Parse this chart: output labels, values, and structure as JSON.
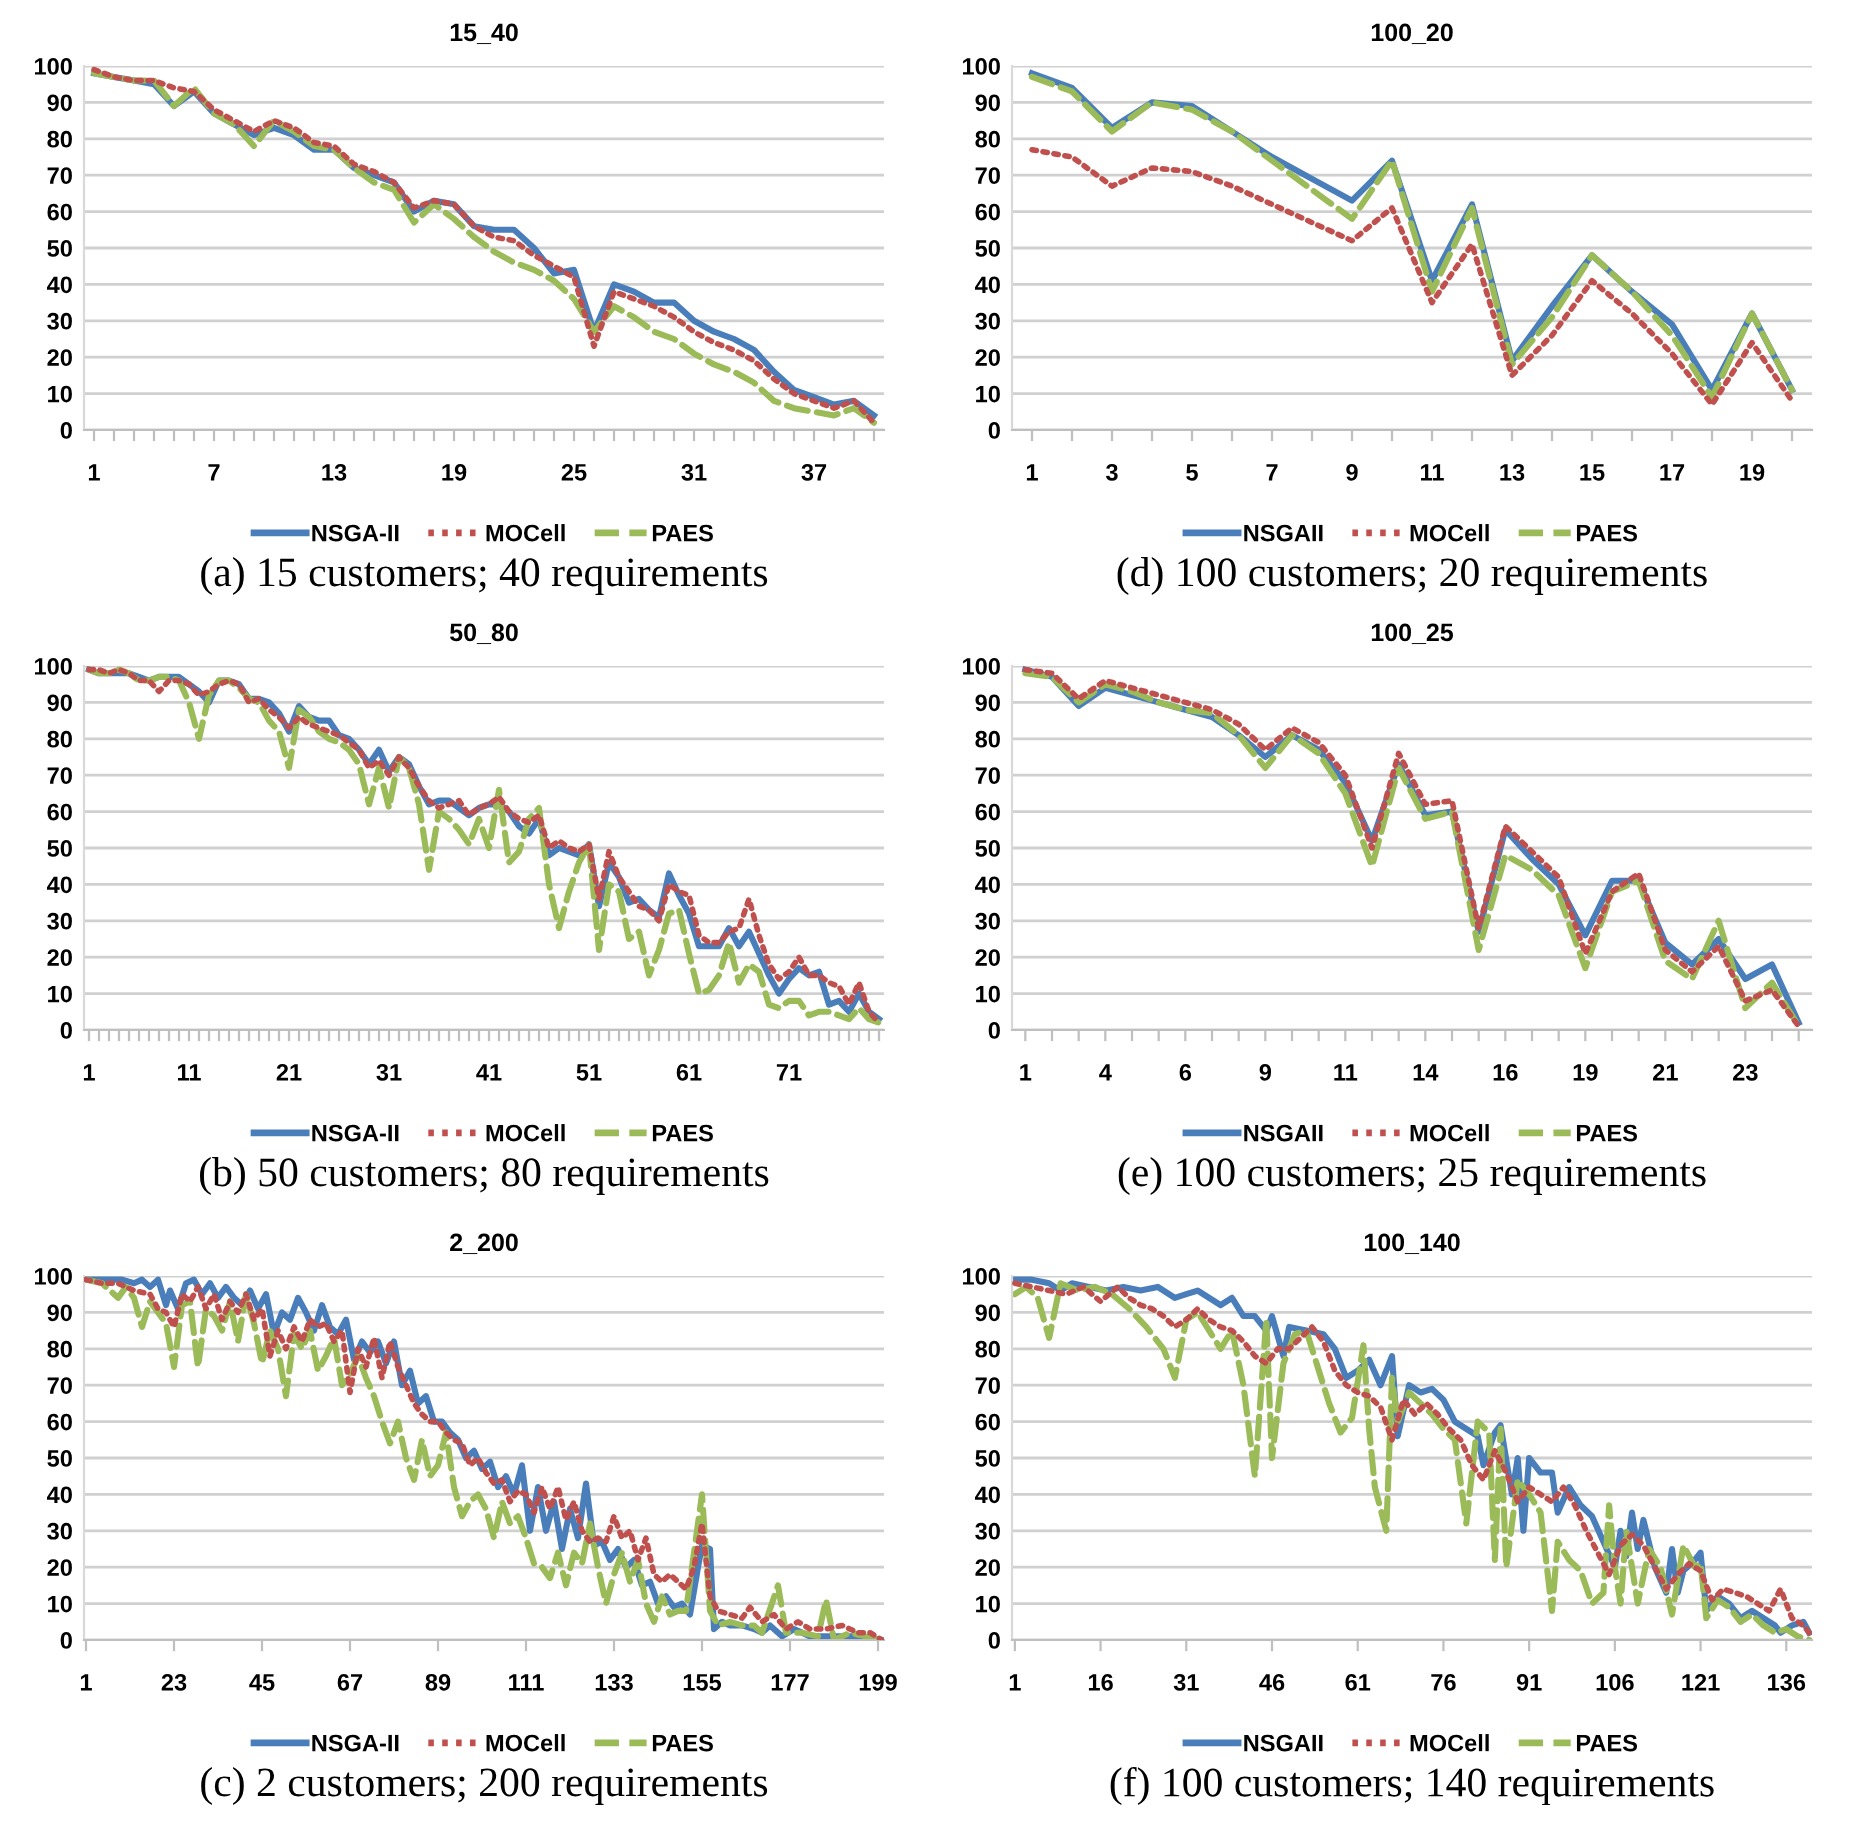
{
  "chart_data": [
    {
      "type": "line",
      "title": "15_40",
      "annotations": [
        "(a) 15 customers; 40 requirements"
      ],
      "categories": [
        "1",
        null,
        null,
        null,
        null,
        null,
        "7",
        null,
        null,
        null,
        null,
        null,
        "13",
        null,
        null,
        null,
        null,
        null,
        "19",
        null,
        null,
        null,
        null,
        null,
        "25",
        null,
        null,
        null,
        null,
        null,
        "31",
        null,
        null,
        null,
        null,
        null,
        "37",
        null,
        null,
        null
      ],
      "ylim": [
        0,
        100
      ],
      "yticks": [
        0,
        10,
        20,
        30,
        40,
        50,
        60,
        70,
        80,
        90,
        100
      ],
      "grid": "y",
      "legend": "bottom",
      "series": [
        {
          "name": "NSGA-II",
          "color": "#4a7ebb",
          "line_style": "solid",
          "values": [
            98,
            97,
            96,
            95,
            89,
            93,
            87,
            84,
            81,
            83,
            81,
            77,
            77,
            72,
            70,
            68,
            60,
            63,
            62,
            56,
            55,
            55,
            50,
            43,
            44,
            27,
            40,
            38,
            35,
            35,
            30,
            27,
            25,
            22,
            16,
            11,
            9,
            7,
            8,
            4
          ]
        },
        {
          "name": "MOCell",
          "color": "#c0504d",
          "line_style": "dotted",
          "values": [
            99,
            97,
            96,
            96,
            94,
            93,
            88,
            85,
            82,
            85,
            83,
            79,
            78,
            73,
            71,
            68,
            61,
            63,
            62,
            56,
            53,
            52,
            48,
            45,
            42,
            23,
            38,
            36,
            34,
            31,
            27,
            24,
            22,
            19,
            14,
            10,
            8,
            6,
            8,
            2
          ]
        },
        {
          "name": "PAES",
          "color": "#9bbb59",
          "line_style": "dashed",
          "values": [
            98,
            97,
            96,
            96,
            89,
            94,
            87,
            84,
            78,
            85,
            82,
            78,
            77,
            72,
            68,
            66,
            57,
            62,
            58,
            53,
            49,
            46,
            44,
            41,
            36,
            27,
            34,
            31,
            27,
            25,
            21,
            18,
            16,
            13,
            8,
            6,
            5,
            4,
            6,
            2
          ]
        }
      ]
    },
    {
      "type": "line",
      "title": "100_20",
      "annotations": [
        "(d) 100 customers; 20 requirements"
      ],
      "categories": [
        "1",
        null,
        "3",
        null,
        "5",
        null,
        "7",
        null,
        "9",
        null,
        "11",
        null,
        "13",
        null,
        "15",
        null,
        "17",
        null,
        "19",
        null
      ],
      "ylim": [
        0,
        100
      ],
      "yticks": [
        0,
        10,
        20,
        30,
        40,
        50,
        60,
        70,
        80,
        90,
        100
      ],
      "grid": "y",
      "legend": "bottom",
      "series": [
        {
          "name": "NSGAII",
          "color": "#4a7ebb",
          "line_style": "solid",
          "values": [
            98,
            94,
            83,
            90,
            89,
            82,
            75,
            69,
            63,
            74,
            41,
            62,
            19,
            34,
            48,
            38,
            29,
            11,
            32,
            11
          ]
        },
        {
          "name": "MOCell",
          "color": "#c0504d",
          "line_style": "dotted",
          "values": [
            77,
            75,
            67,
            72,
            71,
            67,
            62,
            57,
            52,
            61,
            35,
            51,
            15,
            26,
            41,
            32,
            21,
            7,
            24,
            8
          ]
        },
        {
          "name": "PAES",
          "color": "#9bbb59",
          "line_style": "dashed",
          "values": [
            97,
            93,
            82,
            90,
            88,
            82,
            74,
            66,
            58,
            74,
            38,
            61,
            18,
            31,
            48,
            38,
            26,
            9,
            32,
            11
          ]
        }
      ]
    },
    {
      "type": "line",
      "title": "50_80",
      "annotations": [
        "(b) 50 customers; 80 requirements"
      ],
      "categories": [
        "1",
        null,
        null,
        null,
        null,
        null,
        null,
        null,
        null,
        null,
        "11",
        null,
        null,
        null,
        null,
        null,
        null,
        null,
        null,
        null,
        "21",
        null,
        null,
        null,
        null,
        null,
        null,
        null,
        null,
        null,
        "31",
        null,
        null,
        null,
        null,
        null,
        null,
        null,
        null,
        null,
        "41",
        null,
        null,
        null,
        null,
        null,
        null,
        null,
        null,
        null,
        "51",
        null,
        null,
        null,
        null,
        null,
        null,
        null,
        null,
        null,
        "61",
        null,
        null,
        null,
        null,
        null,
        null,
        null,
        null,
        null,
        "71",
        null,
        null,
        null,
        null,
        null,
        null,
        null,
        null,
        null
      ],
      "ylim": [
        0,
        100
      ],
      "yticks": [
        0,
        10,
        20,
        30,
        40,
        50,
        60,
        70,
        80,
        90,
        100
      ],
      "grid": "y",
      "legend": "bottom",
      "series": [
        {
          "name": "NSGA-II",
          "color": "#4a7ebb",
          "line_style": "solid",
          "values": [
            99,
            98,
            98,
            98,
            98,
            97,
            96,
            97,
            97,
            97,
            95,
            93,
            90,
            96,
            96,
            95,
            91,
            91,
            90,
            87,
            82,
            89,
            86,
            85,
            85,
            81,
            80,
            77,
            73,
            77,
            71,
            75,
            73,
            67,
            62,
            63,
            63,
            61,
            59,
            61,
            62,
            62,
            60,
            56,
            54,
            58,
            48,
            50,
            49,
            48,
            51,
            34,
            46,
            42,
            35,
            36,
            33,
            31,
            43,
            37,
            32,
            23,
            23,
            23,
            28,
            23,
            27,
            21,
            15,
            10,
            14,
            17,
            15,
            16,
            7,
            8,
            5,
            10,
            5,
            3
          ]
        },
        {
          "name": "MOCell",
          "color": "#c0504d",
          "line_style": "dotted",
          "values": [
            99,
            99,
            98,
            99,
            98,
            96,
            96,
            93,
            96,
            96,
            95,
            92,
            93,
            95,
            96,
            95,
            90,
            91,
            88,
            86,
            83,
            86,
            84,
            83,
            82,
            81,
            79,
            77,
            72,
            74,
            70,
            75,
            72,
            67,
            63,
            61,
            62,
            63,
            59,
            61,
            62,
            64,
            60,
            58,
            57,
            59,
            50,
            52,
            50,
            49,
            51,
            36,
            49,
            42,
            38,
            34,
            33,
            30,
            40,
            38,
            37,
            26,
            24,
            24,
            27,
            28,
            36,
            26,
            18,
            14,
            16,
            20,
            15,
            15,
            13,
            12,
            7,
            13,
            5,
            2
          ]
        },
        {
          "name": "PAES",
          "color": "#9bbb59",
          "line_style": "dashed",
          "values": [
            99,
            98,
            98,
            99,
            98,
            96,
            96,
            97,
            97,
            96,
            90,
            80,
            92,
            96,
            96,
            94,
            91,
            90,
            85,
            82,
            72,
            88,
            86,
            82,
            80,
            79,
            77,
            73,
            62,
            72,
            61,
            75,
            72,
            62,
            44,
            60,
            58,
            55,
            51,
            58,
            50,
            66,
            46,
            49,
            58,
            61,
            40,
            28,
            38,
            46,
            51,
            22,
            40,
            38,
            25,
            27,
            15,
            22,
            32,
            33,
            21,
            10,
            11,
            15,
            24,
            13,
            18,
            16,
            7,
            6,
            8,
            8,
            4,
            5,
            5,
            4,
            3,
            6,
            3,
            2
          ]
        }
      ]
    },
    {
      "type": "line",
      "title": "100_25",
      "annotations": [
        "(e) 100 customers; 25 requirements"
      ],
      "categories": [
        "1",
        null,
        null,
        "4",
        null,
        null,
        "6",
        null,
        null,
        "9",
        null,
        null,
        "11",
        null,
        null,
        "14",
        null,
        null,
        "16",
        null,
        null,
        "19",
        null,
        null,
        "21",
        null,
        null,
        "23",
        null,
        null
      ],
      "ylim": [
        0,
        100
      ],
      "yticks": [
        0,
        10,
        20,
        30,
        40,
        50,
        60,
        70,
        80,
        90,
        100
      ],
      "grid": "y",
      "legend": "bottom",
      "series": [
        {
          "name": "NSGAII",
          "color": "#4a7ebb",
          "line_style": "solid",
          "values": [
            99,
            97,
            89,
            94,
            92,
            90,
            88,
            86,
            81,
            75,
            81,
            77,
            68,
            52,
            73,
            59,
            60,
            27,
            55,
            47,
            40,
            26,
            41,
            41,
            24,
            18,
            25,
            14,
            18,
            2
          ]
        },
        {
          "name": "MOCell",
          "color": "#c0504d",
          "line_style": "dotted",
          "values": [
            99,
            98,
            91,
            96,
            94,
            92,
            90,
            88,
            84,
            77,
            83,
            79,
            70,
            50,
            76,
            62,
            63,
            28,
            56,
            49,
            42,
            21,
            38,
            43,
            22,
            16,
            23,
            8,
            11,
            1
          ]
        },
        {
          "name": "PAES",
          "color": "#9bbb59",
          "line_style": "dashed",
          "values": [
            98,
            97,
            90,
            95,
            93,
            90,
            88,
            87,
            81,
            72,
            81,
            76,
            65,
            45,
            72,
            58,
            60,
            22,
            48,
            44,
            37,
            17,
            38,
            41,
            19,
            14,
            30,
            6,
            13,
            1
          ]
        }
      ]
    },
    {
      "type": "line",
      "title": "2_200",
      "annotations": [
        "(c) 2 customers; 200 requirements"
      ],
      "xlim": [
        0.5,
        200.5
      ],
      "xticks": [
        1,
        23,
        45,
        67,
        89,
        111,
        133,
        155,
        177,
        199
      ],
      "ylim": [
        0,
        100
      ],
      "yticks": [
        0,
        10,
        20,
        30,
        40,
        50,
        60,
        70,
        80,
        90,
        100
      ],
      "grid": "y",
      "legend": "bottom",
      "series": [
        {
          "name": "NSGA-II",
          "color": "#4a7ebb",
          "line_style": "solid",
          "x": [
            1,
            5,
            10,
            13,
            15,
            17,
            19,
            21,
            22,
            24,
            26,
            28,
            30,
            32,
            34,
            36,
            38,
            40,
            42,
            44,
            46,
            48,
            50,
            52,
            54,
            56,
            58,
            60,
            62,
            64,
            66,
            68,
            70,
            72,
            74,
            76,
            78,
            80,
            82,
            84,
            86,
            88,
            90,
            92,
            94,
            96,
            98,
            100,
            102,
            104,
            106,
            108,
            110,
            112,
            114,
            116,
            118,
            120,
            122,
            124,
            126,
            128,
            130,
            132,
            134,
            136,
            138,
            140,
            142,
            144,
            146,
            148,
            150,
            152,
            154,
            155,
            157,
            158,
            160,
            162,
            165,
            168,
            170,
            172,
            175,
            178,
            182,
            186,
            190,
            195,
            200
          ],
          "values": [
            99,
            99,
            99,
            98,
            99,
            97,
            99,
            92,
            96,
            91,
            98,
            99,
            95,
            98,
            94,
            97,
            94,
            92,
            96,
            91,
            95,
            84,
            90,
            88,
            94,
            90,
            85,
            92,
            86,
            84,
            88,
            77,
            82,
            79,
            82,
            76,
            82,
            70,
            74,
            65,
            67,
            60,
            60,
            57,
            55,
            50,
            52,
            47,
            49,
            42,
            45,
            40,
            48,
            30,
            42,
            30,
            38,
            25,
            36,
            28,
            43,
            26,
            27,
            22,
            25,
            20,
            22,
            15,
            16,
            10,
            12,
            9,
            10,
            7,
            20,
            26,
            25,
            3,
            5,
            4,
            4,
            3,
            2,
            4,
            1,
            3,
            1,
            1,
            1,
            1,
            0
          ]
        },
        {
          "name": "MOCell",
          "color": "#c0504d",
          "line_style": "dotted",
          "x": [
            1,
            5,
            9,
            13,
            17,
            19,
            21,
            23,
            25,
            27,
            29,
            31,
            33,
            35,
            37,
            39,
            41,
            43,
            45,
            47,
            49,
            51,
            53,
            55,
            57,
            59,
            61,
            63,
            65,
            67,
            69,
            71,
            73,
            75,
            77,
            79,
            81,
            83,
            85,
            87,
            89,
            91,
            93,
            95,
            97,
            99,
            101,
            103,
            105,
            107,
            109,
            111,
            113,
            115,
            117,
            119,
            121,
            123,
            125,
            127,
            129,
            131,
            133,
            135,
            137,
            139,
            141,
            143,
            145,
            147,
            149,
            151,
            153,
            155,
            157,
            159,
            162,
            165,
            167,
            170,
            173,
            176,
            179,
            182,
            186,
            190,
            194,
            197,
            200
          ],
          "values": [
            99,
            98,
            98,
            96,
            95,
            91,
            90,
            86,
            95,
            93,
            97,
            91,
            95,
            88,
            93,
            90,
            95,
            88,
            91,
            78,
            85,
            80,
            86,
            82,
            88,
            86,
            87,
            82,
            85,
            68,
            80,
            75,
            83,
            72,
            82,
            75,
            70,
            65,
            62,
            60,
            60,
            57,
            55,
            54,
            48,
            50,
            46,
            43,
            44,
            38,
            41,
            40,
            35,
            42,
            36,
            42,
            33,
            38,
            30,
            27,
            28,
            27,
            34,
            28,
            30,
            22,
            28,
            18,
            16,
            18,
            16,
            14,
            20,
            32,
            12,
            8,
            7,
            6,
            9,
            5,
            7,
            3,
            5,
            3,
            3,
            4,
            2,
            2,
            0
          ]
        },
        {
          "name": "PAES",
          "color": "#9bbb59",
          "line_style": "dashed",
          "x": [
            1,
            5,
            9,
            11,
            13,
            15,
            17,
            19,
            21,
            23,
            25,
            27,
            29,
            31,
            33,
            35,
            37,
            39,
            41,
            43,
            45,
            47,
            49,
            51,
            53,
            55,
            57,
            59,
            61,
            63,
            65,
            67,
            69,
            71,
            73,
            75,
            77,
            79,
            81,
            83,
            85,
            87,
            89,
            91,
            93,
            95,
            97,
            99,
            101,
            103,
            105,
            107,
            109,
            111,
            113,
            115,
            117,
            119,
            121,
            123,
            125,
            127,
            129,
            131,
            133,
            135,
            137,
            139,
            141,
            143,
            145,
            147,
            149,
            151,
            155,
            157,
            159,
            162,
            165,
            168,
            170,
            174,
            176,
            180,
            184,
            186,
            188,
            192,
            196,
            200
          ],
          "values": [
            99,
            98,
            94,
            97,
            94,
            86,
            93,
            90,
            87,
            75,
            92,
            93,
            75,
            91,
            89,
            85,
            93,
            82,
            95,
            87,
            76,
            85,
            80,
            67,
            84,
            80,
            85,
            74,
            78,
            83,
            70,
            73,
            78,
            72,
            67,
            60,
            54,
            60,
            50,
            44,
            55,
            45,
            48,
            57,
            42,
            34,
            38,
            40,
            36,
            28,
            38,
            32,
            34,
            28,
            21,
            20,
            17,
            24,
            15,
            24,
            21,
            32,
            20,
            10,
            18,
            24,
            16,
            22,
            10,
            5,
            12,
            7,
            8,
            8,
            40,
            8,
            4,
            5,
            4,
            4,
            2,
            15,
            2,
            2,
            1,
            11,
            0,
            2,
            1,
            0
          ]
        }
      ]
    },
    {
      "type": "line",
      "title": "100_140",
      "annotations": [
        "(f) 100 customers; 140 requirements"
      ],
      "xlim": [
        0.5,
        140.5
      ],
      "xticks": [
        1,
        16,
        31,
        46,
        61,
        76,
        91,
        106,
        121,
        136
      ],
      "ylim": [
        0,
        100
      ],
      "yticks": [
        0,
        10,
        20,
        30,
        40,
        50,
        60,
        70,
        80,
        90,
        100
      ],
      "grid": "y",
      "legend": "bottom",
      "series": [
        {
          "name": "NSGAII",
          "color": "#4a7ebb",
          "line_style": "solid",
          "x": [
            1,
            4,
            7,
            9,
            11,
            14,
            17,
            20,
            23,
            26,
            29,
            31,
            33,
            35,
            37,
            39,
            41,
            43,
            45,
            46,
            48,
            49,
            52,
            55,
            57,
            59,
            61,
            63,
            65,
            67,
            68,
            70,
            72,
            74,
            76,
            78,
            80,
            82,
            83,
            85,
            86,
            88,
            89,
            90,
            91,
            93,
            95,
            96,
            98,
            100,
            102,
            104,
            106,
            107,
            108,
            109,
            110,
            111,
            113,
            115,
            116,
            117,
            118,
            120,
            121,
            122,
            124,
            126,
            128,
            130,
            132,
            134,
            135,
            137,
            139,
            140
          ],
          "values": [
            99,
            99,
            98,
            96,
            98,
            97,
            96,
            97,
            96,
            97,
            94,
            95,
            96,
            94,
            92,
            94,
            89,
            89,
            85,
            89,
            78,
            86,
            85,
            84,
            80,
            72,
            74,
            77,
            70,
            78,
            56,
            70,
            68,
            69,
            66,
            60,
            58,
            56,
            48,
            57,
            59,
            40,
            50,
            30,
            50,
            46,
            46,
            35,
            42,
            37,
            34,
            27,
            20,
            30,
            23,
            35,
            25,
            33,
            20,
            13,
            25,
            13,
            19,
            22,
            24,
            8,
            12,
            10,
            6,
            8,
            6,
            4,
            2,
            4,
            5,
            2
          ]
        },
        {
          "name": "MOCell",
          "color": "#c0504d",
          "line_style": "dotted",
          "x": [
            1,
            4,
            7,
            10,
            13,
            16,
            19,
            21,
            23,
            25,
            27,
            29,
            31,
            33,
            35,
            37,
            39,
            41,
            43,
            45,
            47,
            49,
            51,
            53,
            55,
            57,
            59,
            61,
            63,
            65,
            67,
            69,
            71,
            73,
            75,
            77,
            79,
            81,
            83,
            85,
            87,
            89,
            91,
            93,
            95,
            97,
            99,
            101,
            103,
            105,
            107,
            109,
            111,
            113,
            115,
            117,
            119,
            121,
            123,
            125,
            127,
            129,
            131,
            133,
            135,
            137,
            139,
            140
          ],
          "values": [
            98,
            97,
            96,
            95,
            97,
            93,
            97,
            94,
            92,
            91,
            89,
            86,
            88,
            91,
            88,
            86,
            85,
            82,
            78,
            76,
            80,
            80,
            83,
            86,
            82,
            74,
            70,
            68,
            67,
            64,
            55,
            66,
            62,
            65,
            62,
            58,
            55,
            48,
            44,
            52,
            46,
            38,
            42,
            40,
            38,
            42,
            37,
            30,
            24,
            18,
            26,
            29,
            26,
            20,
            14,
            18,
            21,
            19,
            11,
            14,
            13,
            12,
            10,
            8,
            14,
            6,
            4,
            2
          ]
        },
        {
          "name": "PAES",
          "color": "#9bbb59",
          "line_style": "dashed",
          "x": [
            1,
            3,
            5,
            7,
            9,
            12,
            15,
            18,
            21,
            24,
            27,
            29,
            31,
            33,
            35,
            37,
            39,
            41,
            43,
            45,
            46,
            48,
            50,
            52,
            54,
            56,
            58,
            60,
            62,
            63,
            64,
            66,
            67,
            68,
            70,
            72,
            74,
            76,
            78,
            80,
            82,
            84,
            85,
            86,
            87,
            89,
            91,
            93,
            95,
            96,
            98,
            100,
            102,
            104,
            105,
            106,
            107,
            108,
            110,
            112,
            114,
            116,
            118,
            120,
            121,
            122,
            124,
            126,
            128,
            130,
            132,
            134,
            136,
            138,
            140
          ],
          "values": [
            95,
            97,
            94,
            83,
            98,
            96,
            97,
            95,
            91,
            86,
            80,
            72,
            88,
            90,
            85,
            80,
            85,
            70,
            45,
            88,
            50,
            76,
            84,
            85,
            75,
            65,
            57,
            61,
            81,
            58,
            42,
            30,
            72,
            60,
            68,
            65,
            62,
            58,
            55,
            32,
            60,
            57,
            22,
            58,
            20,
            44,
            40,
            35,
            8,
            27,
            22,
            19,
            10,
            13,
            37,
            20,
            10,
            30,
            10,
            25,
            20,
            7,
            26,
            20,
            21,
            6,
            11,
            9,
            5,
            7,
            4,
            2,
            3,
            1,
            0
          ]
        }
      ]
    }
  ]
}
